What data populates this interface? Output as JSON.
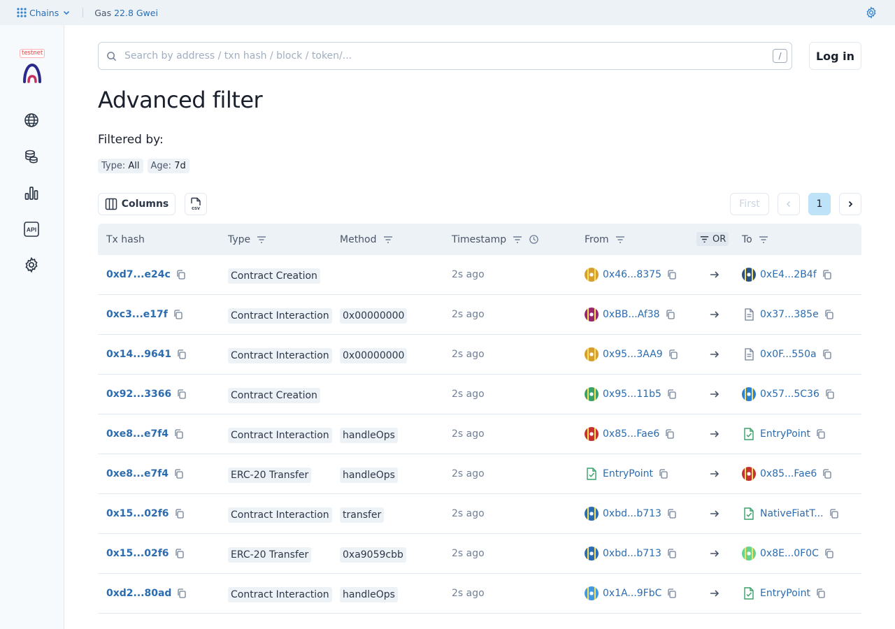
{
  "topbar": {
    "chains_label": "Chains",
    "gas_label": "Gas",
    "gas_value": "22.8 Gwei"
  },
  "sidebar": {
    "testnet_label": "testnet",
    "api_label": "API",
    "items": [
      "globe-icon",
      "coins-icon",
      "stats-icon",
      "api-icon",
      "settings-icon"
    ]
  },
  "search": {
    "placeholder": "Search by address / txn hash / block / token/...",
    "shortcut": "/"
  },
  "header": {
    "login_label": "Log in"
  },
  "page": {
    "title": "Advanced filter",
    "filtered_by": "Filtered by:",
    "tags": [
      {
        "key": "Type:",
        "value": "All"
      },
      {
        "key": "Age:",
        "value": "7d"
      }
    ]
  },
  "toolbar": {
    "columns_label": "Columns",
    "csv_label": "csv"
  },
  "pagination": {
    "first_label": "First",
    "current_page": "1"
  },
  "table": {
    "headers": {
      "tx_hash": "Tx hash",
      "type": "Type",
      "method": "Method",
      "timestamp": "Timestamp",
      "from": "From",
      "or": "OR",
      "to": "To"
    },
    "rows": [
      {
        "hash": "0xd7...e24c",
        "type": "Contract Creation",
        "method": "",
        "time": "2s ago",
        "from": "0x46...8375",
        "from_icon": "identicon",
        "from_color": "#d69e2e",
        "to": "0xE4...2B4f",
        "to_icon": "identicon",
        "to_color": "#2c5282"
      },
      {
        "hash": "0xc3...e17f",
        "type": "Contract Interaction",
        "method": "0x00000000",
        "time": "2s ago",
        "from": "0xBB...Af38",
        "from_icon": "identicon",
        "from_color": "#97266d",
        "to": "0x37...385e",
        "to_icon": "contract-icon",
        "to_color": "#718096"
      },
      {
        "hash": "0x14...9641",
        "type": "Contract Interaction",
        "method": "0x00000000",
        "time": "2s ago",
        "from": "0x95...3AA9",
        "from_icon": "identicon",
        "from_color": "#d69e2e",
        "to": "0x0F...550a",
        "to_icon": "contract-icon",
        "to_color": "#718096"
      },
      {
        "hash": "0x92...3366",
        "type": "Contract Creation",
        "method": "",
        "time": "2s ago",
        "from": "0x95...11b5",
        "from_icon": "identicon",
        "from_color": "#38a169",
        "to": "0x57...5C36",
        "to_icon": "identicon",
        "to_color": "#3182ce"
      },
      {
        "hash": "0xe8...e7f4",
        "type": "Contract Interaction",
        "method": "handleOps",
        "time": "2s ago",
        "from": "0x85...Fae6",
        "from_icon": "identicon",
        "from_color": "#c53030",
        "to": "EntryPoint",
        "to_icon": "verified-contract-icon",
        "to_color": "#38a169"
      },
      {
        "hash": "0xe8...e7f4",
        "type": "ERC-20 Transfer",
        "method": "handleOps",
        "time": "2s ago",
        "from": "EntryPoint",
        "from_icon": "verified-contract-icon",
        "from_color": "#38a169",
        "to": "0x85...Fae6",
        "to_icon": "identicon",
        "to_color": "#c53030"
      },
      {
        "hash": "0x15...02f6",
        "type": "Contract Interaction",
        "method": "transfer",
        "time": "2s ago",
        "from": "0xbd...b713",
        "from_icon": "identicon",
        "from_color": "#2b6cb0",
        "to": "NativeFiatT...",
        "to_icon": "verified-contract-icon",
        "to_color": "#38a169"
      },
      {
        "hash": "0x15...02f6",
        "type": "ERC-20 Transfer",
        "method": "0xa9059cbb",
        "time": "2s ago",
        "from": "0xbd...b713",
        "from_icon": "identicon",
        "from_color": "#2b6cb0",
        "to": "0x8E...0F0C",
        "to_icon": "identicon",
        "to_color": "#68d391"
      },
      {
        "hash": "0xd2...80ad",
        "type": "Contract Interaction",
        "method": "handleOps",
        "time": "2s ago",
        "from": "0x1A...9FbC",
        "from_icon": "identicon",
        "from_color": "#4299e1",
        "to": "EntryPoint",
        "to_icon": "verified-contract-icon",
        "to_color": "#38a169"
      }
    ]
  },
  "colors": {
    "accent": "#2b6cb0",
    "topbar_bg": "#edf2f7",
    "header_bg": "#edf2f7",
    "sidebar_bg": "#f7fafc"
  }
}
